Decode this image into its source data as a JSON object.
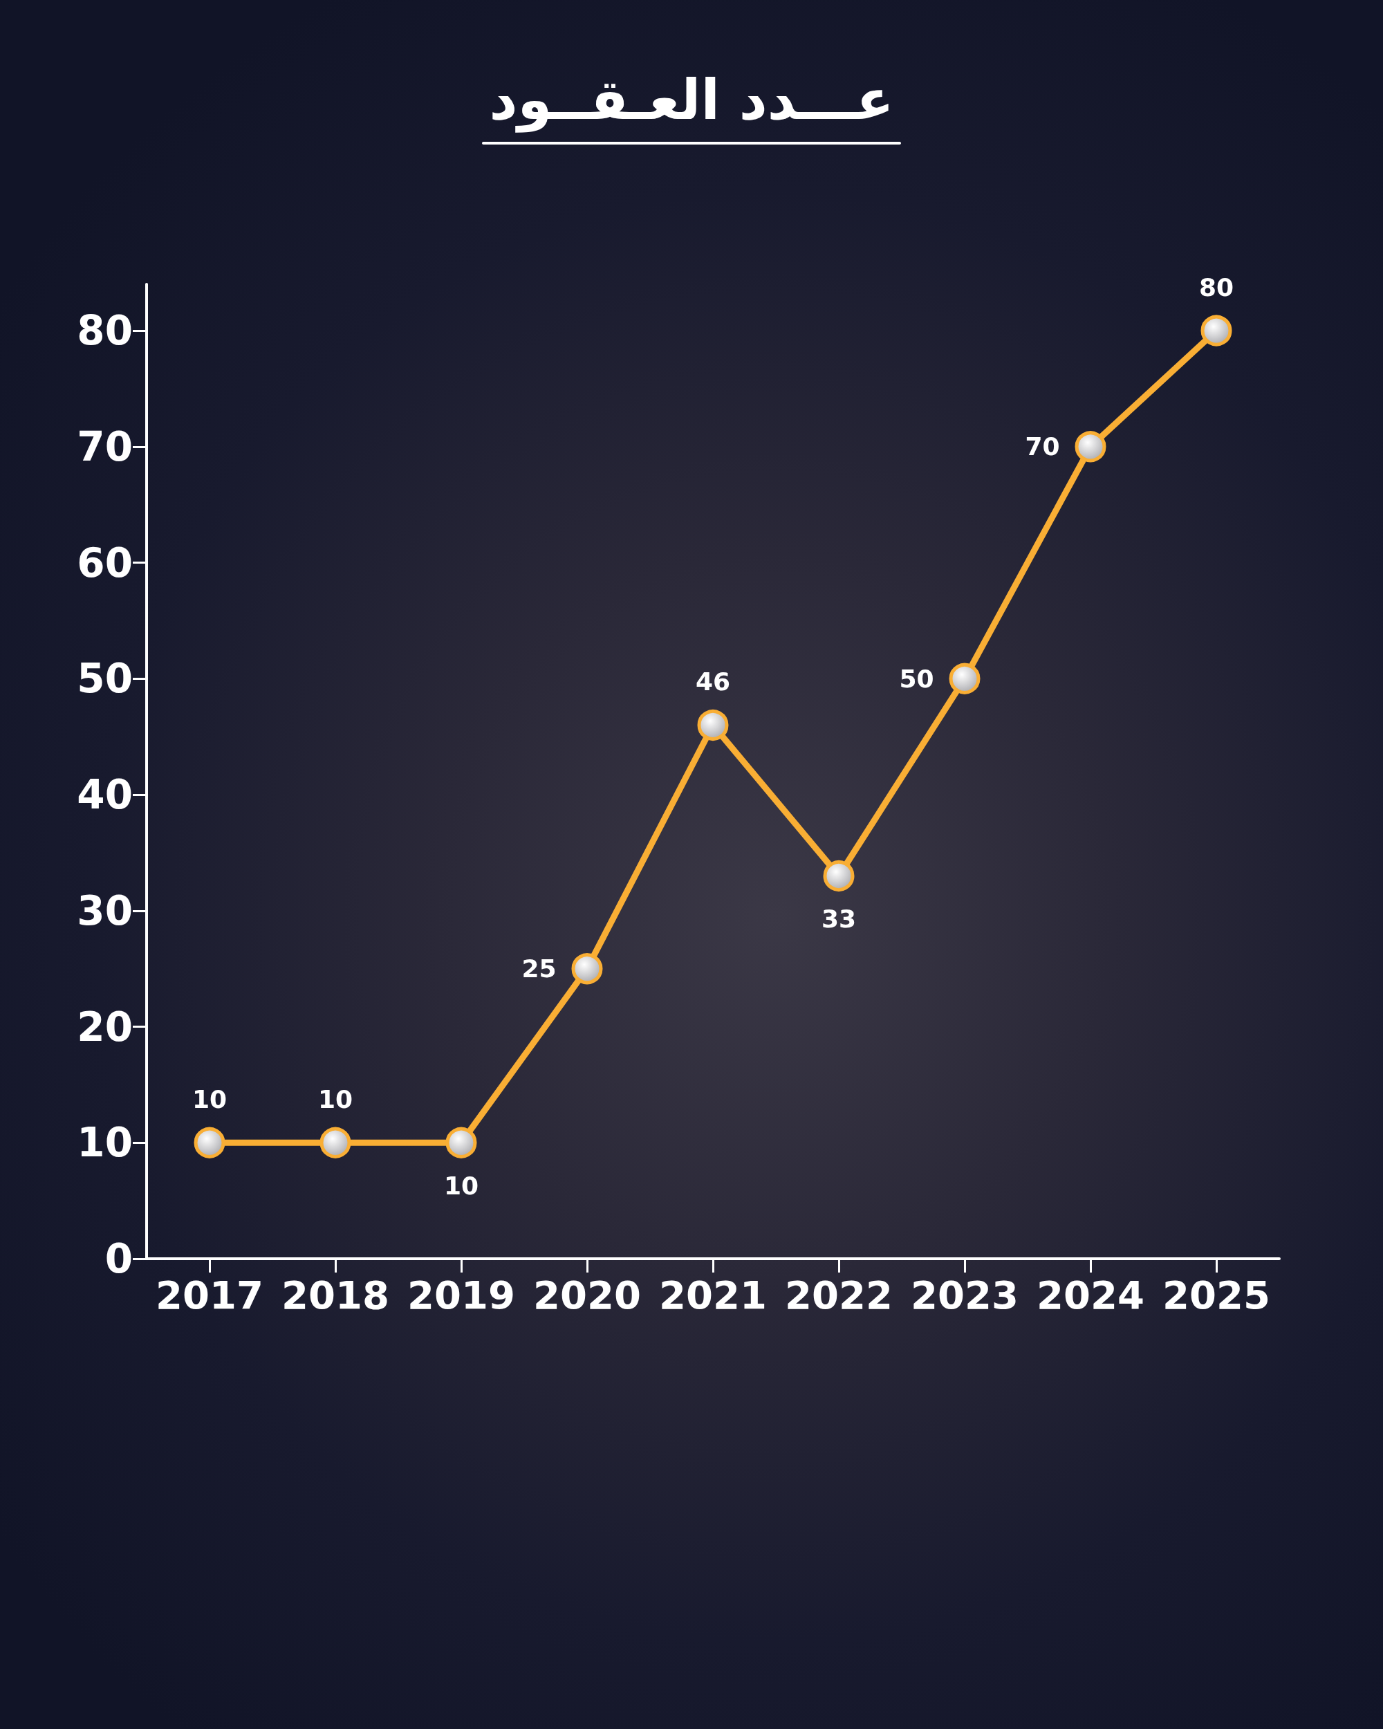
{
  "chart_data": {
    "type": "line",
    "title": "عـــدد العـقــود",
    "categories": [
      "2017",
      "2018",
      "2019",
      "2020",
      "2021",
      "2022",
      "2023",
      "2024",
      "2025"
    ],
    "values": [
      10,
      10,
      10,
      25,
      46,
      33,
      50,
      70,
      80
    ],
    "color": "#f9ae34",
    "ylim": [
      0,
      84
    ],
    "yticks": [
      0,
      10,
      20,
      30,
      40,
      50,
      60,
      70,
      80
    ],
    "grid": false,
    "marker": "circle",
    "line_style": "solid",
    "data_labels": true
  }
}
